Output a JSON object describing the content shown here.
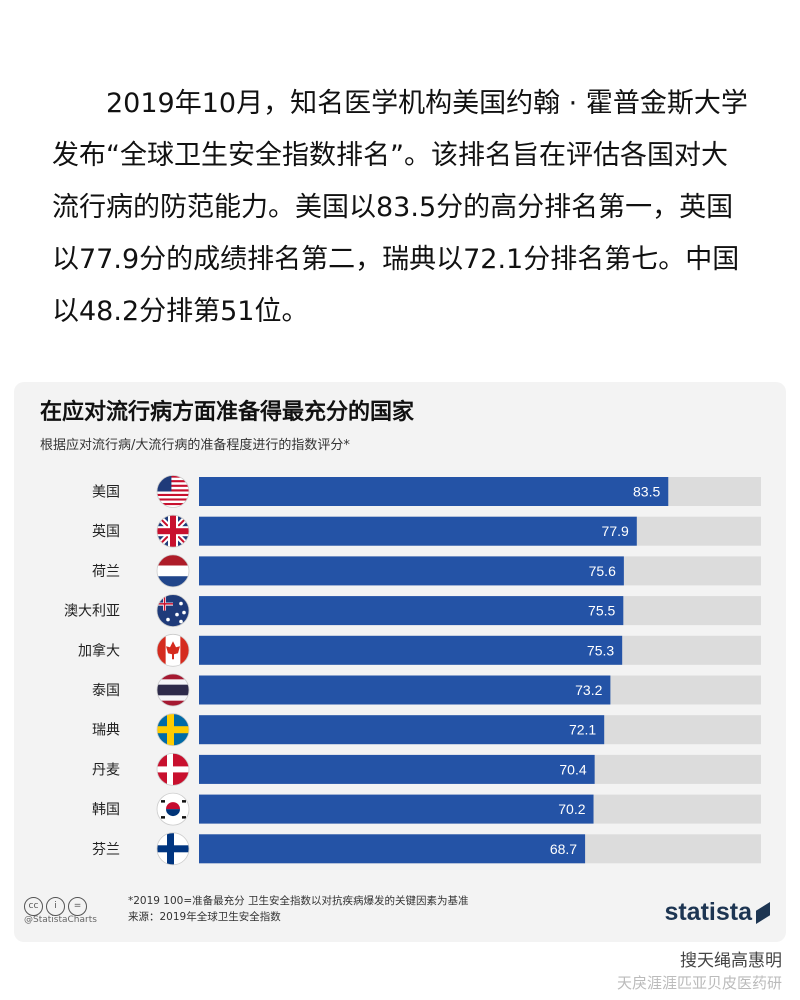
{
  "article": {
    "paragraph": "2019年10月，知名医学机构美国约翰 · 霍普金斯大学发布“全球卫生安全指数排名”。该排名旨在评估各国对大流行病的防范能力。美国以83.5分的高分排名第一，英国以77.9分的成绩排名第二，瑞典以72.1分排名第七。中国以48.2分排第51位。"
  },
  "chart_data": {
    "type": "bar",
    "orientation": "horizontal",
    "title": "在应对流行病方面准备得最充分的国家",
    "subtitle": "根据应对流行病/大流行病的准备程度进行的指数评分*",
    "categories": [
      "美国",
      "英国",
      "荷兰",
      "澳大利亚",
      "加拿大",
      "泰国",
      "瑞典",
      "丹麦",
      "韩国",
      "芬兰"
    ],
    "flags": [
      "us-flag-icon",
      "uk-flag-icon",
      "netherlands-flag-icon",
      "australia-flag-icon",
      "canada-flag-icon",
      "thailand-flag-icon",
      "sweden-flag-icon",
      "denmark-flag-icon",
      "korea-flag-icon",
      "finland-flag-icon"
    ],
    "values": [
      83.5,
      77.9,
      75.6,
      75.5,
      75.3,
      73.2,
      72.1,
      70.4,
      70.2,
      68.7
    ],
    "labels": [
      "83.5",
      "77.9",
      "75.6",
      "75.5",
      "75.3",
      "73.2",
      "72.1",
      "70.4",
      "70.2",
      "68.7"
    ],
    "xlim": [
      0,
      100
    ],
    "bar_color": "#2453a6",
    "track_color": "#dcdcdc",
    "footnote": "*2019 100=准备最充分  卫生安全指数以对抗疾病爆发的关键因素为基准",
    "source": "来源：2019年全球卫生安全指数"
  },
  "branding": {
    "handle": "@StatistaCharts",
    "license_icons": [
      "cc",
      "i",
      "="
    ],
    "logo": "statista"
  },
  "watermark": {
    "line1": "搜天绳高惠明",
    "line2": "天戾涯涯匹亚贝皮医药研"
  }
}
